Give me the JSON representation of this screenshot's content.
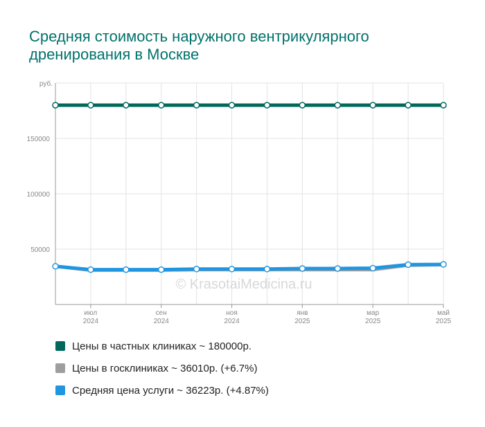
{
  "title": "Средняя стоимость наружного вентрикулярного дренирования в Москве",
  "watermark": "© KrasotaiMedicina.ru",
  "legend": [
    {
      "label": "Цены в частных клиниках ~ 180000р.",
      "color": "#00695c"
    },
    {
      "label": "Цены в госклиниках ~ 36010р. (+6.7%)",
      "color": "#9e9e9e"
    },
    {
      "label": "Средняя цена услуги ~ 36223р. (+4.87%)",
      "color": "#2196e0"
    }
  ],
  "chart_data": {
    "type": "line",
    "y_unit_label": "руб.",
    "ylim": [
      0,
      200000
    ],
    "y_ticks": [
      {
        "value": 50000,
        "label": "50000"
      },
      {
        "value": 100000,
        "label": "100000"
      },
      {
        "value": 150000,
        "label": "150000"
      }
    ],
    "x_tick_labels": [
      {
        "index": 1,
        "line1": "июл",
        "line2": "2024"
      },
      {
        "index": 3,
        "line1": "сен",
        "line2": "2024"
      },
      {
        "index": 5,
        "line1": "ноя",
        "line2": "2024"
      },
      {
        "index": 7,
        "line1": "янв",
        "line2": "2025"
      },
      {
        "index": 9,
        "line1": "мар",
        "line2": "2025"
      },
      {
        "index": 11,
        "line1": "май",
        "line2": "2025"
      }
    ],
    "point_count": 12,
    "grid": true,
    "series": [
      {
        "name": "Цены в частных клиниках",
        "color": "#00695c",
        "values": [
          180000,
          180000,
          180000,
          180000,
          180000,
          180000,
          180000,
          180000,
          180000,
          180000,
          180000,
          180000
        ]
      },
      {
        "name": "Цены в госклиниках",
        "color": "#9e9e9e",
        "values": [
          34500,
          31000,
          31000,
          31000,
          31500,
          31500,
          31500,
          31500,
          31500,
          31500,
          35500,
          36010
        ]
      },
      {
        "name": "Средняя цена услуги",
        "color": "#2196e0",
        "values": [
          34500,
          31500,
          31500,
          31500,
          32000,
          32000,
          32000,
          32500,
          32500,
          32800,
          36000,
          36223
        ]
      }
    ]
  }
}
